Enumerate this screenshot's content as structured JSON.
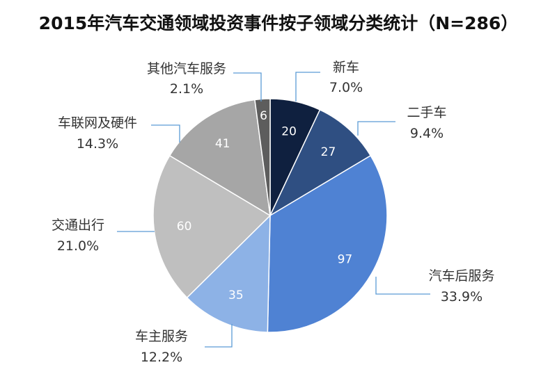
{
  "chart_data": {
    "type": "pie",
    "title": "2015年汽车交通领域投资事件按子领域分类统计（N=286）",
    "start_angle_deg": 0,
    "direction": "clockwise",
    "slices": [
      {
        "name": "新车",
        "value": 20,
        "percent": "7.0%",
        "color": "#0f203f"
      },
      {
        "name": "二手车",
        "value": 27,
        "percent": "9.4%",
        "color": "#2f4f82"
      },
      {
        "name": "汽车后服务",
        "value": 97,
        "percent": "33.9%",
        "color": "#4f82d3"
      },
      {
        "name": "车主服务",
        "value": 35,
        "percent": "12.2%",
        "color": "#8db2e6"
      },
      {
        "name": "交通出行",
        "value": 60,
        "percent": "21.0%",
        "color": "#bfbfbf"
      },
      {
        "name": "车联网及硬件",
        "value": 41,
        "percent": "14.3%",
        "color": "#a6a6a6"
      },
      {
        "name": "其他汽车服务",
        "value": 6,
        "percent": "2.1%",
        "color": "#5d5d5d"
      }
    ],
    "leader_line_color": "#5b9bd5"
  }
}
